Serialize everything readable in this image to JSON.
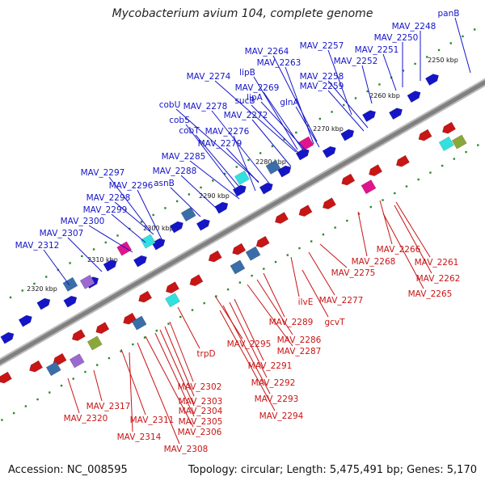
{
  "title": "Mycobacterium avium 104, complete genome",
  "footer": {
    "accession": "Accession: NC_008595",
    "summary": "Topology: circular; Length: 5,475,491 bp; Genes: 5,170"
  },
  "colors": {
    "forward": "#1515c8",
    "reverse": "#c81515",
    "tick": "#2a8a2a",
    "backbone": "#808080"
  },
  "ticks": [
    {
      "label": "2250 kbp"
    },
    {
      "label": "2260 kbp"
    },
    {
      "label": "2270 kbp"
    },
    {
      "label": "2280 kbp"
    },
    {
      "label": "2290 kbp"
    },
    {
      "label": "2300 kbp"
    },
    {
      "label": "2310 kbp"
    },
    {
      "label": "2320 kbp"
    }
  ],
  "forward_genes": [
    {
      "label": "panB"
    },
    {
      "label": "MAV_2248"
    },
    {
      "label": "MAV_2250"
    },
    {
      "label": "MAV_2251"
    },
    {
      "label": "MAV_2252"
    },
    {
      "label": "MAV_2257"
    },
    {
      "label": "MAV_2264"
    },
    {
      "label": "MAV_2263"
    },
    {
      "label": "MAV_2258"
    },
    {
      "label": "MAV_2259"
    },
    {
      "label": "lipB"
    },
    {
      "label": "MAV_2274"
    },
    {
      "label": "MAV_2269"
    },
    {
      "label": "lipA"
    },
    {
      "label": "sucB"
    },
    {
      "label": "glnA"
    },
    {
      "label": "cobU"
    },
    {
      "label": "MAV_2278"
    },
    {
      "label": "MAV_2272"
    },
    {
      "label": "cobS"
    },
    {
      "label": "cobT"
    },
    {
      "label": "MAV_2276"
    },
    {
      "label": "MAV_2279"
    },
    {
      "label": "MAV_2285"
    },
    {
      "label": "MAV_2288"
    },
    {
      "label": "MAV_2297"
    },
    {
      "label": "asnB"
    },
    {
      "label": "MAV_2296"
    },
    {
      "label": "MAV_2298"
    },
    {
      "label": "MAV_2299"
    },
    {
      "label": "MAV_2300"
    },
    {
      "label": "MAV_2307"
    },
    {
      "label": "MAV_2312"
    }
  ],
  "reverse_genes": [
    {
      "label": "MAV_2266"
    },
    {
      "label": "MAV_2268"
    },
    {
      "label": "MAV_2261"
    },
    {
      "label": "MAV_2275"
    },
    {
      "label": "MAV_2262"
    },
    {
      "label": "MAV_2265"
    },
    {
      "label": "ilvE"
    },
    {
      "label": "MAV_2277"
    },
    {
      "label": "MAV_2289"
    },
    {
      "label": "gcvT"
    },
    {
      "label": "MAV_2286"
    },
    {
      "label": "MAV_2287"
    },
    {
      "label": "trpD"
    },
    {
      "label": "MAV_2295"
    },
    {
      "label": "MAV_2291"
    },
    {
      "label": "MAV_2292"
    },
    {
      "label": "MAV_2302"
    },
    {
      "label": "MAV_2293"
    },
    {
      "label": "MAV_2303"
    },
    {
      "label": "MAV_2304"
    },
    {
      "label": "MAV_2294"
    },
    {
      "label": "MAV_2317"
    },
    {
      "label": "MAV_2305"
    },
    {
      "label": "MAV_2320"
    },
    {
      "label": "MAV_2311"
    },
    {
      "label": "MAV_2306"
    },
    {
      "label": "MAV_2314"
    },
    {
      "label": "MAV_2308"
    }
  ]
}
